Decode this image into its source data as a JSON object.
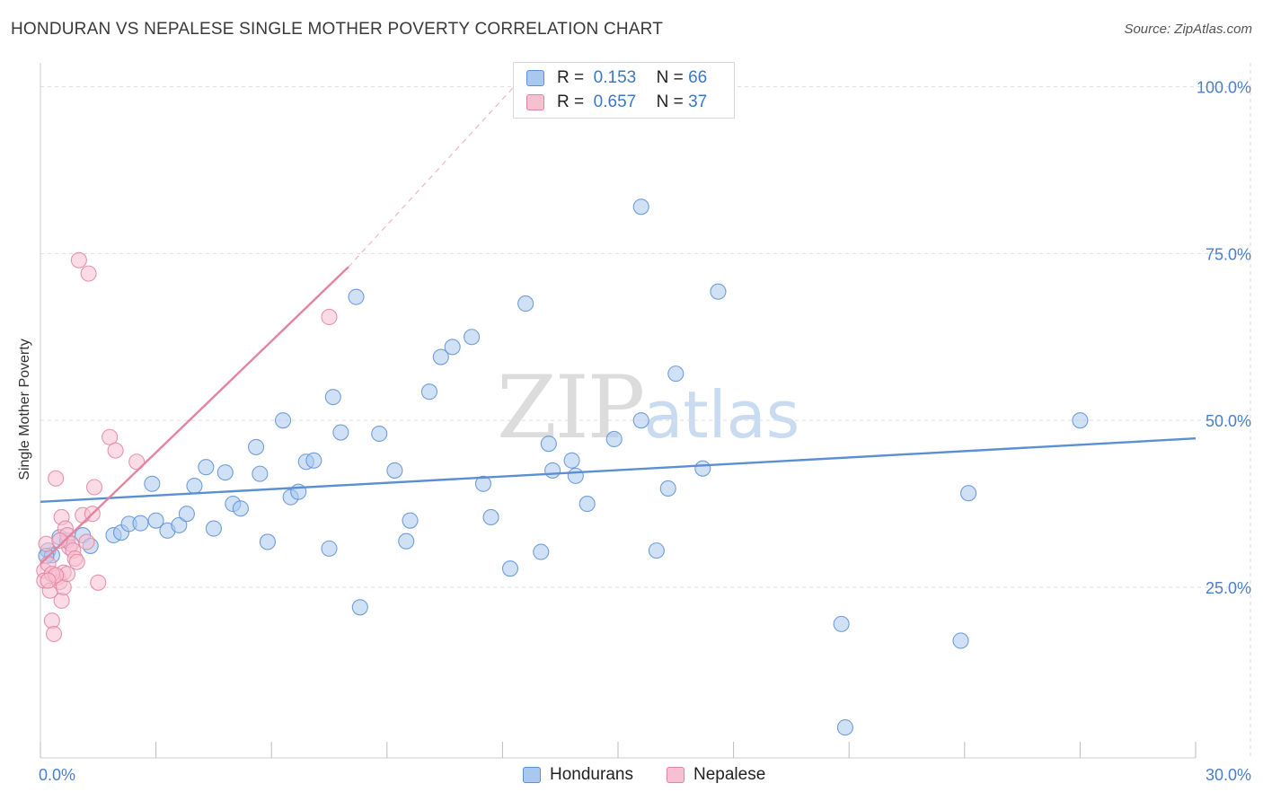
{
  "title": "HONDURAN VS NEPALESE SINGLE MOTHER POVERTY CORRELATION CHART",
  "source": "Source: ZipAtlas.com",
  "watermark": {
    "zip": "ZIP",
    "atlas": "atlas"
  },
  "legend": {
    "rows": [
      {
        "r_label": "R =",
        "r_value": "0.153",
        "n_label": "N =",
        "n_value": "66",
        "color": "#a9c8ee",
        "border": "#5b8fd4"
      },
      {
        "r_label": "R =",
        "r_value": "0.657",
        "n_label": "N =",
        "n_value": "37",
        "color": "#f7c0d1",
        "border": "#e2849f"
      }
    ]
  },
  "bottom_legend": [
    {
      "label": "Hondurans",
      "color": "#a9c8ee",
      "border": "#5b8fd4"
    },
    {
      "label": "Nepalese",
      "color": "#f7c0d1",
      "border": "#e2849f"
    }
  ],
  "chart_data": {
    "type": "scatter",
    "title": "HONDURAN VS NEPALESE SINGLE MOTHER POVERTY CORRELATION CHART",
    "xlabel": "",
    "ylabel": "Single Mother Poverty",
    "xlim": [
      0,
      30
    ],
    "ylim": [
      0,
      100
    ],
    "x_tick_labels": [
      "0.0%",
      "30.0%"
    ],
    "y_ticks": [
      25,
      50,
      75,
      100
    ],
    "y_tick_labels": [
      "25.0%",
      "50.0%",
      "75.0%",
      "100.0%"
    ],
    "grid": "horizontal dashed",
    "legend_placement": "top-center",
    "series": [
      {
        "name": "Hondurans",
        "color": "#5b8fd4",
        "fill": "#a9c8ee",
        "trend": {
          "x": [
            0,
            30
          ],
          "y": [
            37.8,
            47.3
          ],
          "style": "solid"
        },
        "points": [
          [
            0.2,
            30.5
          ],
          [
            0.3,
            29.8
          ],
          [
            0.5,
            32.5
          ],
          [
            0.7,
            32.0
          ],
          [
            1.1,
            32.8
          ],
          [
            1.3,
            31.2
          ],
          [
            1.9,
            32.8
          ],
          [
            2.1,
            33.2
          ],
          [
            2.3,
            34.5
          ],
          [
            2.6,
            34.6
          ],
          [
            2.9,
            40.5
          ],
          [
            3.0,
            35.0
          ],
          [
            3.3,
            33.5
          ],
          [
            3.6,
            34.3
          ],
          [
            3.8,
            36.0
          ],
          [
            4.0,
            40.2
          ],
          [
            4.3,
            43.0
          ],
          [
            4.5,
            33.8
          ],
          [
            4.8,
            42.2
          ],
          [
            5.0,
            37.5
          ],
          [
            5.2,
            36.8
          ],
          [
            5.6,
            46.0
          ],
          [
            5.7,
            42.0
          ],
          [
            5.9,
            31.8
          ],
          [
            6.3,
            50.0
          ],
          [
            6.5,
            38.5
          ],
          [
            6.7,
            39.3
          ],
          [
            6.9,
            43.8
          ],
          [
            7.1,
            44.0
          ],
          [
            7.5,
            30.8
          ],
          [
            7.6,
            53.5
          ],
          [
            7.8,
            48.2
          ],
          [
            8.2,
            68.5
          ],
          [
            8.3,
            22.0
          ],
          [
            8.8,
            48.0
          ],
          [
            9.2,
            42.5
          ],
          [
            9.5,
            31.9
          ],
          [
            9.6,
            35.0
          ],
          [
            10.1,
            54.3
          ],
          [
            10.4,
            59.5
          ],
          [
            10.7,
            61.0
          ],
          [
            11.2,
            62.5
          ],
          [
            11.5,
            40.5
          ],
          [
            11.7,
            35.5
          ],
          [
            12.2,
            27.8
          ],
          [
            12.6,
            67.5
          ],
          [
            13.0,
            30.3
          ],
          [
            13.2,
            46.5
          ],
          [
            13.3,
            42.5
          ],
          [
            13.8,
            44.0
          ],
          [
            13.9,
            41.7
          ],
          [
            14.2,
            37.5
          ],
          [
            14.9,
            47.2
          ],
          [
            15.6,
            82.0
          ],
          [
            15.6,
            50.0
          ],
          [
            16.0,
            30.5
          ],
          [
            16.3,
            39.8
          ],
          [
            16.5,
            57.0
          ],
          [
            17.2,
            42.8
          ],
          [
            17.6,
            69.3
          ],
          [
            20.8,
            19.5
          ],
          [
            20.9,
            4.0
          ],
          [
            23.9,
            17.0
          ],
          [
            24.1,
            39.1
          ],
          [
            27.0,
            50.0
          ],
          [
            0.15,
            29.7
          ]
        ]
      },
      {
        "name": "Nepalese",
        "color": "#e2849f",
        "fill": "#f7c0d1",
        "trend": {
          "x": [
            0,
            8.0
          ],
          "y": [
            28.5,
            73.0
          ],
          "style": "solid",
          "extension": {
            "x": [
              8.0,
              12.3
            ],
            "y": [
              73.0,
              100.0
            ],
            "style": "dashed"
          }
        },
        "points": [
          [
            0.1,
            27.5
          ],
          [
            0.1,
            26.0
          ],
          [
            0.15,
            31.5
          ],
          [
            0.2,
            28.5
          ],
          [
            0.25,
            24.5
          ],
          [
            0.3,
            20.0
          ],
          [
            0.35,
            18.0
          ],
          [
            0.4,
            41.3
          ],
          [
            0.45,
            26.5
          ],
          [
            0.5,
            25.8
          ],
          [
            0.55,
            23.0
          ],
          [
            0.55,
            35.5
          ],
          [
            0.6,
            27.2
          ],
          [
            0.6,
            25.0
          ],
          [
            0.65,
            33.8
          ],
          [
            0.7,
            32.8
          ],
          [
            0.75,
            31.0
          ],
          [
            0.8,
            31.5
          ],
          [
            0.85,
            30.5
          ],
          [
            0.9,
            29.3
          ],
          [
            0.95,
            28.8
          ],
          [
            1.0,
            74.0
          ],
          [
            1.1,
            35.8
          ],
          [
            1.2,
            31.8
          ],
          [
            1.25,
            72.0
          ],
          [
            1.35,
            36.0
          ],
          [
            1.4,
            40.0
          ],
          [
            1.5,
            25.7
          ],
          [
            1.8,
            47.5
          ],
          [
            1.95,
            45.5
          ],
          [
            2.5,
            43.8
          ],
          [
            7.5,
            65.5
          ],
          [
            0.3,
            27.0
          ],
          [
            0.5,
            32.0
          ],
          [
            0.7,
            27.0
          ],
          [
            0.4,
            26.8
          ],
          [
            0.2,
            26.0
          ]
        ]
      }
    ]
  }
}
